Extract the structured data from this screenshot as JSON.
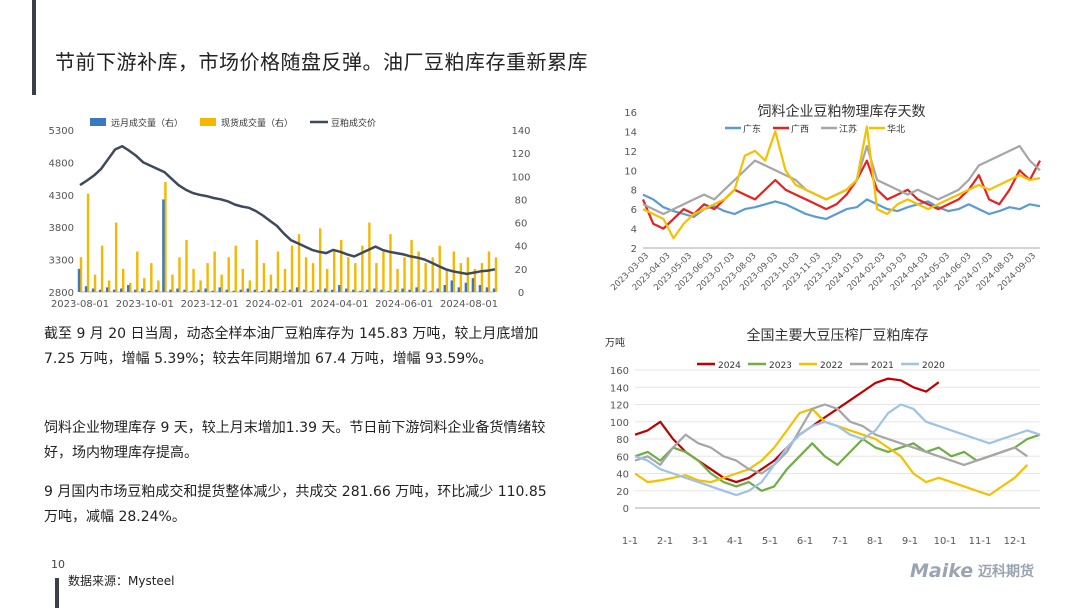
{
  "page": {
    "title": "节前下游补库，市场价格随盘反弹。油厂豆粕库存重新累库",
    "page_number": "10",
    "source": "数据来源：Mysteel",
    "logo_text": "Maike",
    "logo_cn": "迈科期货"
  },
  "paragraphs": [
    "截至 9 月 20 日当周，动态全样本油厂豆粕库存为 145.83 万吨，较上月底增加 7.25 万吨，增幅 5.39%；较去年同期增加 67.4 万吨，增幅 93.59%。",
    "饲料企业物理库存 9 天，较上月末增加1.39 天。节日前下游饲料企业备货情绪较好，场内物理库存提高。",
    "9 月国内市场豆粕成交和提货整体减少，共成交 281.66 万吨，环比减少 110.85 万吨，减幅 28.24%。"
  ],
  "chart_data": [
    {
      "type": "bar",
      "title": "",
      "x_tick_labels": [
        "2023-08-01",
        "2023-10-01",
        "2023-12-01",
        "2024-02-01",
        "2024-04-01",
        "2024-06-01",
        "2024-08-01"
      ],
      "ylim_left": [
        2800,
        5300
      ],
      "yticks_left": [
        2800,
        3300,
        3800,
        4300,
        4800,
        5300
      ],
      "ylim_right": [
        0,
        140
      ],
      "yticks_right": [
        0,
        20,
        40,
        60,
        80,
        100,
        120,
        140
      ],
      "legend": [
        "远月成交量（右）",
        "现货成交量（右）",
        "豆粕成交价"
      ],
      "colors": {
        "forward": "#3b78c3",
        "spot": "#f5b800",
        "price": "#3d4a5c"
      },
      "series": [
        {
          "name": "豆粕成交价",
          "axis": "left",
          "values": [
            4450,
            4520,
            4600,
            4700,
            4850,
            5000,
            5050,
            4980,
            4900,
            4800,
            4750,
            4700,
            4650,
            4550,
            4450,
            4380,
            4330,
            4300,
            4280,
            4250,
            4230,
            4200,
            4150,
            4120,
            4100,
            4050,
            3980,
            3900,
            3820,
            3700,
            3600,
            3550,
            3500,
            3450,
            3420,
            3400,
            3450,
            3420,
            3380,
            3350,
            3400,
            3450,
            3500,
            3450,
            3420,
            3400,
            3380,
            3350,
            3330,
            3300,
            3250,
            3200,
            3150,
            3120,
            3100,
            3080,
            3100,
            3120,
            3130,
            3150
          ]
        },
        {
          "name": "远月成交量（右）",
          "axis": "right",
          "values": [
            20,
            5,
            3,
            2,
            4,
            2,
            3,
            6,
            2,
            3,
            1,
            2,
            80,
            2,
            3,
            2,
            1,
            2,
            3,
            1,
            4,
            2,
            1,
            2,
            3,
            2,
            1,
            2,
            3,
            1,
            2,
            4,
            2,
            1,
            2,
            3,
            2,
            6,
            3,
            2,
            1,
            2,
            3,
            2,
            1,
            2,
            3,
            2,
            4,
            2,
            1,
            3,
            6,
            10,
            4,
            8,
            12,
            6,
            4,
            3
          ]
        },
        {
          "name": "现货成交量（右）",
          "axis": "right",
          "values": [
            30,
            85,
            15,
            40,
            10,
            60,
            20,
            8,
            35,
            12,
            25,
            10,
            95,
            15,
            30,
            45,
            20,
            10,
            25,
            35,
            15,
            30,
            40,
            20,
            10,
            45,
            25,
            15,
            35,
            20,
            40,
            50,
            30,
            25,
            55,
            20,
            35,
            45,
            30,
            25,
            40,
            60,
            25,
            35,
            50,
            20,
            30,
            45,
            35,
            25,
            30,
            40,
            20,
            35,
            25,
            30,
            20,
            25,
            35,
            30
          ]
        }
      ]
    },
    {
      "type": "line",
      "title": "饲料企业豆粕物理库存天数",
      "x_tick_labels": [
        "2023-03-03",
        "2023-04-03",
        "2023-05-03",
        "2023-06-03",
        "2023-07-03",
        "2023-08-03",
        "2023-09-03",
        "2023-10-03",
        "2023-11-03",
        "2023-12-03",
        "2024-01-03",
        "2024-02-03",
        "2024-03-03",
        "2024-04-03",
        "2024-05-03",
        "2024-06-03",
        "2024-07-03",
        "2024-08-03",
        "2024-09-03"
      ],
      "ylim": [
        2,
        16
      ],
      "yticks": [
        2,
        4,
        6,
        8,
        10,
        12,
        14,
        16
      ],
      "series": [
        {
          "name": "广东",
          "color": "#5b9bd5",
          "values": [
            7.5,
            7.0,
            6.2,
            5.8,
            5.5,
            5.2,
            6.0,
            6.3,
            5.8,
            5.5,
            6.0,
            6.2,
            6.5,
            6.8,
            6.5,
            6.0,
            5.5,
            5.2,
            5.0,
            5.5,
            6.0,
            6.2,
            7.0,
            6.5,
            6.0,
            5.8,
            6.2,
            6.5,
            6.8,
            6.2,
            5.8,
            6.0,
            6.5,
            6.0,
            5.5,
            5.8,
            6.2,
            6.0,
            6.5,
            6.3
          ]
        },
        {
          "name": "广西",
          "color": "#e8201e",
          "values": [
            7.0,
            4.5,
            4.0,
            5.0,
            6.0,
            5.5,
            6.5,
            6.0,
            7.0,
            8.0,
            7.5,
            7.0,
            8.0,
            9.0,
            8.0,
            7.5,
            7.0,
            6.5,
            6.0,
            6.5,
            7.5,
            9.0,
            11.0,
            8.0,
            7.0,
            7.5,
            8.0,
            7.0,
            6.5,
            6.0,
            6.5,
            7.0,
            8.0,
            9.5,
            7.0,
            6.5,
            8.0,
            10.0,
            9.0,
            11.0
          ]
        },
        {
          "name": "江苏",
          "color": "#a6a6a6",
          "values": [
            6.5,
            6.0,
            5.5,
            6.0,
            6.5,
            7.0,
            7.5,
            7.0,
            8.0,
            9.0,
            10.0,
            11.0,
            10.5,
            10.0,
            9.5,
            9.0,
            8.0,
            7.5,
            7.0,
            7.5,
            8.0,
            9.0,
            12.5,
            9.0,
            8.5,
            8.0,
            7.5,
            8.0,
            7.5,
            7.0,
            7.5,
            8.0,
            9.0,
            10.5,
            11.0,
            11.5,
            12.0,
            12.5,
            11.0,
            10.0
          ]
        },
        {
          "name": "华北",
          "color": "#f5c000",
          "values": [
            6.0,
            5.5,
            5.0,
            3.0,
            4.5,
            5.5,
            6.0,
            6.5,
            7.0,
            8.0,
            11.5,
            12.0,
            11.0,
            14.0,
            10.0,
            8.5,
            8.0,
            7.5,
            7.0,
            7.5,
            8.0,
            9.0,
            14.5,
            6.0,
            5.5,
            6.5,
            7.0,
            6.5,
            6.0,
            6.5,
            7.0,
            7.5,
            8.0,
            8.5,
            8.0,
            8.5,
            9.0,
            9.5,
            9.0,
            9.2
          ]
        }
      ]
    },
    {
      "type": "line",
      "title": "全国主要大豆压榨厂豆粕库存",
      "ylabel": "万吨",
      "x_tick_labels": [
        "1-1",
        "2-1",
        "3-1",
        "4-1",
        "5-1",
        "6-1",
        "7-1",
        "8-1",
        "9-1",
        "10-1",
        "11-1",
        "12-1"
      ],
      "ylim": [
        0,
        160
      ],
      "yticks": [
        0,
        20,
        40,
        60,
        80,
        100,
        120,
        140,
        160
      ],
      "series": [
        {
          "name": "2024",
          "color": "#c00000",
          "values": [
            85,
            90,
            100,
            80,
            65,
            55,
            45,
            35,
            30,
            35,
            45,
            55,
            70,
            85,
            95,
            105,
            115,
            125,
            135,
            145,
            150,
            148,
            140,
            135,
            146
          ]
        },
        {
          "name": "2023",
          "color": "#70ad47",
          "values": [
            60,
            65,
            55,
            70,
            65,
            55,
            40,
            30,
            25,
            30,
            20,
            25,
            45,
            60,
            75,
            60,
            50,
            65,
            80,
            70,
            65,
            70,
            75,
            65,
            70,
            60,
            65,
            55,
            60,
            65,
            70,
            80,
            85
          ]
        },
        {
          "name": "2022",
          "color": "#f5c000",
          "values": [
            40,
            30,
            32,
            35,
            38,
            32,
            30,
            35,
            40,
            45,
            55,
            70,
            90,
            110,
            115,
            100,
            95,
            90,
            85,
            80,
            70,
            60,
            40,
            30,
            35,
            30,
            25,
            20,
            15,
            25,
            35,
            50
          ]
        },
        {
          "name": "2021",
          "color": "#a6a6a6",
          "values": [
            55,
            60,
            50,
            70,
            85,
            75,
            70,
            60,
            55,
            45,
            40,
            50,
            65,
            90,
            115,
            120,
            115,
            100,
            95,
            85,
            80,
            75,
            70,
            65,
            60,
            55,
            50,
            55,
            60,
            65,
            70,
            60
          ]
        },
        {
          "name": "2020",
          "color": "#9dc3e6",
          "values": [
            60,
            55,
            45,
            40,
            35,
            30,
            25,
            20,
            15,
            20,
            30,
            50,
            70,
            85,
            95,
            100,
            95,
            85,
            80,
            90,
            110,
            120,
            115,
            100,
            95,
            90,
            85,
            80,
            75,
            80,
            85,
            90,
            85
          ]
        }
      ]
    }
  ]
}
